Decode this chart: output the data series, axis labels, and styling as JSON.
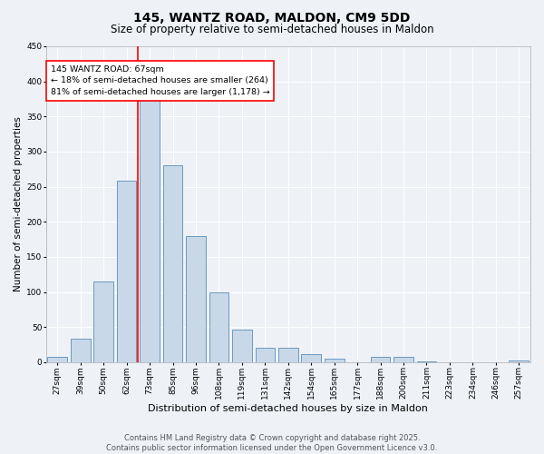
{
  "title": "145, WANTZ ROAD, MALDON, CM9 5DD",
  "subtitle": "Size of property relative to semi-detached houses in Maldon",
  "xlabel": "Distribution of semi-detached houses by size in Maldon",
  "ylabel": "Number of semi-detached properties",
  "bin_labels": [
    "27sqm",
    "39sqm",
    "50sqm",
    "62sqm",
    "73sqm",
    "85sqm",
    "96sqm",
    "108sqm",
    "119sqm",
    "131sqm",
    "142sqm",
    "154sqm",
    "165sqm",
    "177sqm",
    "188sqm",
    "200sqm",
    "211sqm",
    "223sqm",
    "234sqm",
    "246sqm",
    "257sqm"
  ],
  "bar_values": [
    7,
    33,
    115,
    258,
    375,
    280,
    180,
    100,
    47,
    20,
    20,
    11,
    5,
    0,
    7,
    7,
    1,
    0,
    0,
    0,
    3
  ],
  "bar_color": "#c8d8e8",
  "bar_edge_color": "#5b8db8",
  "property_bin_index": 3,
  "annotation_text": "145 WANTZ ROAD: 67sqm\n← 18% of semi-detached houses are smaller (264)\n81% of semi-detached houses are larger (1,178) →",
  "ylim": [
    0,
    450
  ],
  "yticks": [
    0,
    50,
    100,
    150,
    200,
    250,
    300,
    350,
    400,
    450
  ],
  "footer_line1": "Contains HM Land Registry data © Crown copyright and database right 2025.",
  "footer_line2": "Contains public sector information licensed under the Open Government Licence v3.0.",
  "bg_color": "#eef2f7",
  "plot_bg_color": "#eef2f7",
  "grid_color": "#ffffff",
  "title_fontsize": 10,
  "subtitle_fontsize": 8.5,
  "ylabel_fontsize": 7.5,
  "xlabel_fontsize": 8,
  "tick_fontsize": 6.5,
  "annotation_fontsize": 6.8,
  "footer_fontsize": 6
}
